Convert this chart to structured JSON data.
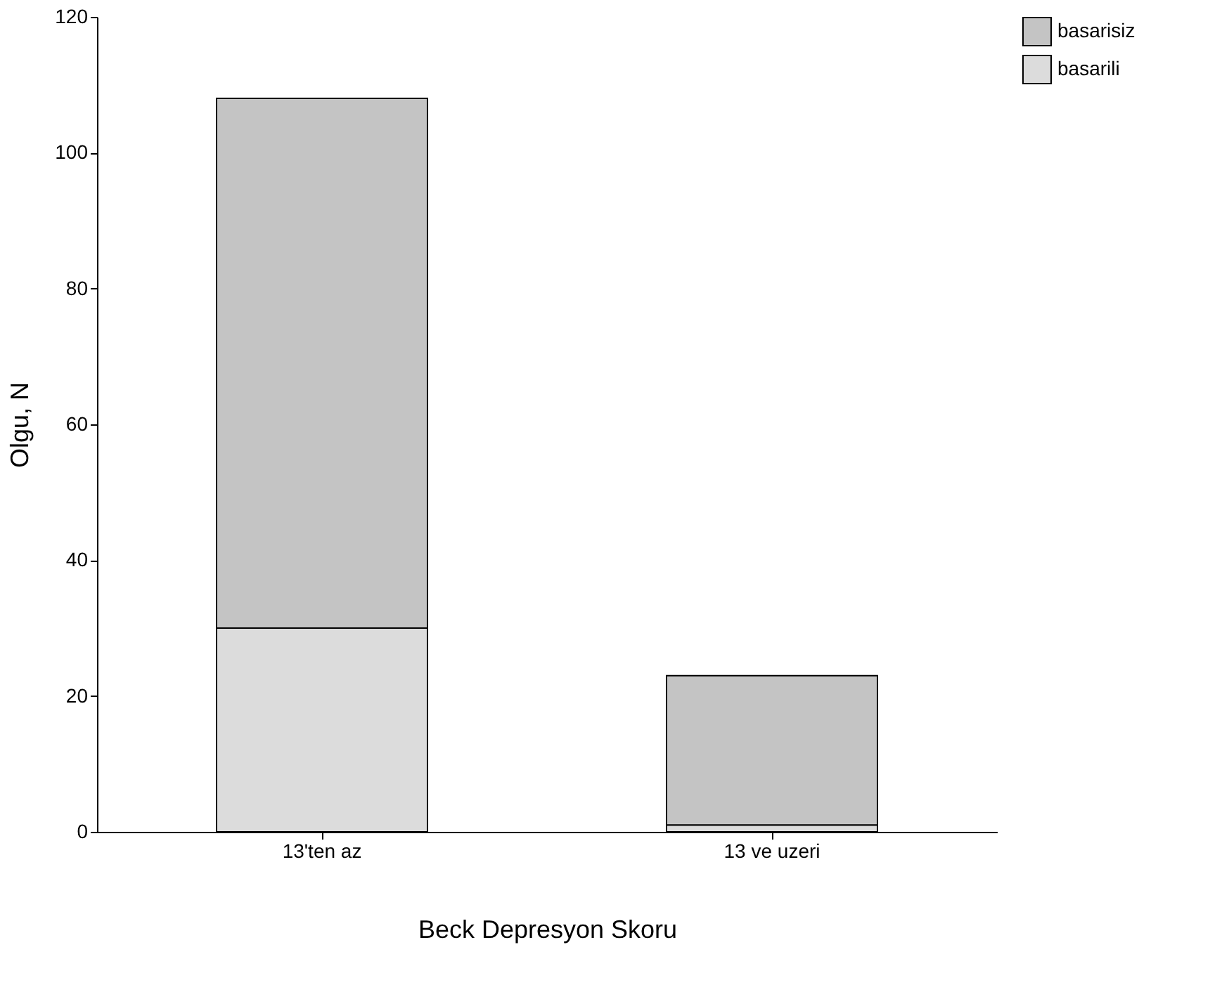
{
  "chart_data": {
    "type": "bar",
    "stacked": true,
    "xlabel": "Beck Depresyon Skoru",
    "ylabel": "Olgu, N",
    "categories": [
      "13'ten az",
      "13 ve uzeri"
    ],
    "series": [
      {
        "name": "basarili",
        "color": "#dcdcdc",
        "values": [
          30,
          1
        ]
      },
      {
        "name": "basarisiz",
        "color": "#c4c4c4",
        "values": [
          78,
          22
        ]
      }
    ],
    "ylim": [
      0,
      120
    ],
    "yticks": [
      0,
      20,
      40,
      60,
      80,
      100,
      120
    ],
    "grid": false,
    "legend": "right"
  }
}
